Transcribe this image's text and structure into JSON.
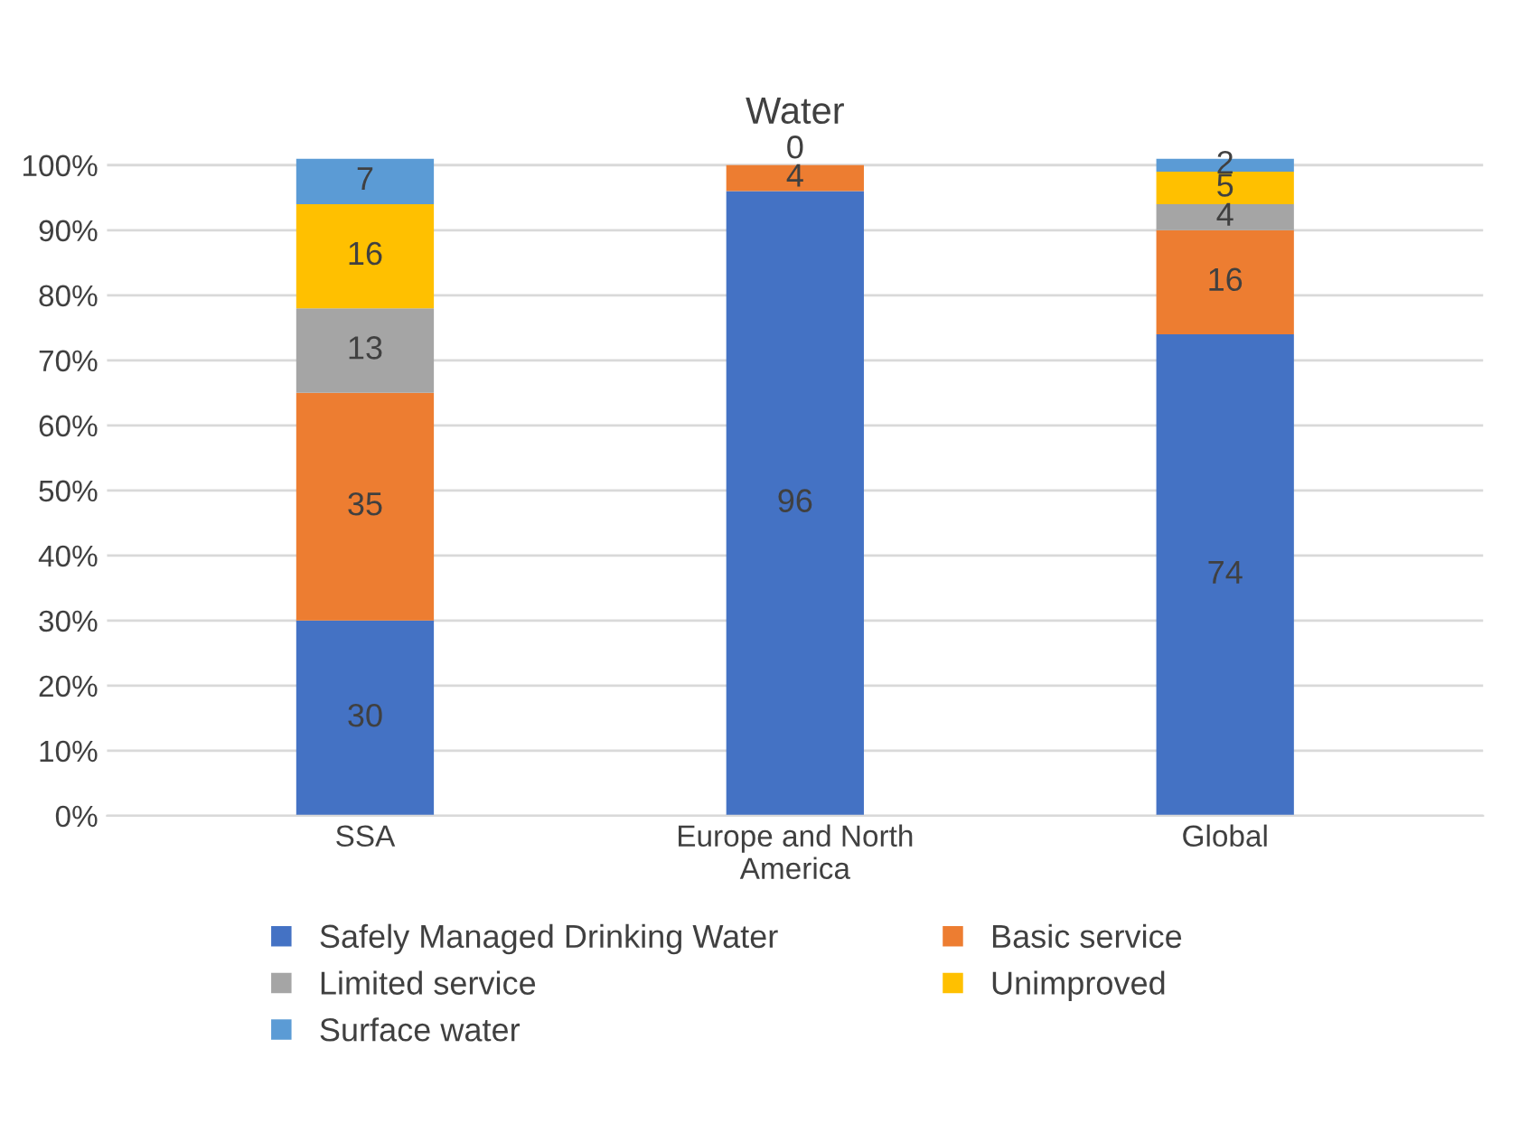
{
  "chart_data": {
    "type": "bar",
    "title": "Water",
    "stacked": true,
    "categories": [
      "SSA",
      "Europe and North\nAmerica",
      "Global"
    ],
    "series": [
      {
        "name": "Safely Managed Drinking Water",
        "color": "#4472c4",
        "values": [
          30,
          96,
          74
        ],
        "value_labels": [
          "30",
          "96",
          "74"
        ]
      },
      {
        "name": "Basic service",
        "color": "#ed7d31",
        "values": [
          35,
          4,
          16
        ],
        "value_labels": [
          "35",
          "4",
          "16"
        ]
      },
      {
        "name": "Limited service",
        "color": "#a5a5a5",
        "values": [
          13,
          0,
          4
        ],
        "value_labels": [
          "13",
          "0",
          "4"
        ]
      },
      {
        "name": "Unimproved",
        "color": "#ffc000",
        "values": [
          16,
          0,
          5
        ],
        "value_labels": [
          "16",
          null,
          "5"
        ]
      },
      {
        "name": "Surface water",
        "color": "#5b9bd5",
        "values": [
          7,
          0,
          2
        ],
        "value_labels": [
          "7",
          null,
          "2"
        ]
      }
    ],
    "ylim": [
      0,
      101
    ],
    "yticks": [
      {
        "value": 0,
        "label": "0%"
      },
      {
        "value": 10,
        "label": "10%"
      },
      {
        "value": 20,
        "label": "20%"
      },
      {
        "value": 30,
        "label": "30%"
      },
      {
        "value": 40,
        "label": "40%"
      },
      {
        "value": 50,
        "label": "50%"
      },
      {
        "value": 60,
        "label": "60%"
      },
      {
        "value": 70,
        "label": "70%"
      },
      {
        "value": 80,
        "label": "80%"
      },
      {
        "value": 90,
        "label": "90%"
      },
      {
        "value": 100,
        "label": "100%"
      }
    ],
    "grid": "y",
    "legend": "bottom"
  }
}
